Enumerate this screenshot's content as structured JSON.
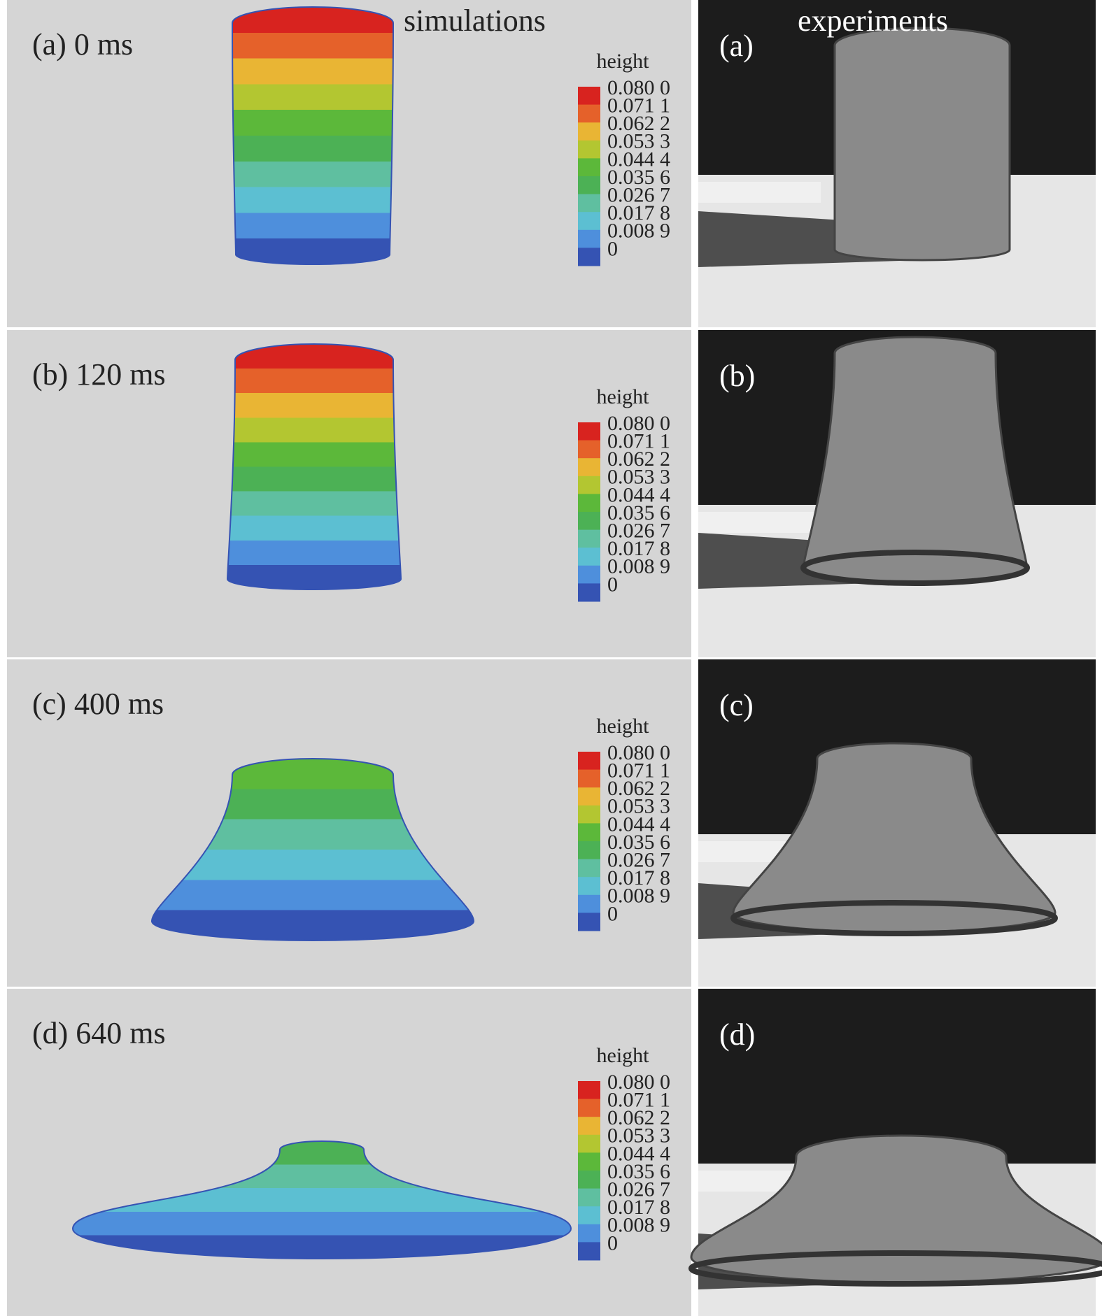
{
  "header": {
    "simulations": "simulations",
    "experiments": "experiments"
  },
  "colorbar": {
    "title": "height",
    "labels": [
      "0.080 0",
      "0.071 1",
      "0.062 2",
      "0.053 3",
      "0.044 4",
      "0.035 6",
      "0.026 7",
      "0.017 8",
      "0.008 9",
      "0"
    ],
    "colors": [
      "#d8231f",
      "#e5612a",
      "#e9b534",
      "#b3c631",
      "#5cb83a",
      "#4cb155",
      "#5fbfa0",
      "#5cbfd2",
      "#4e8fdc",
      "#3553b3"
    ]
  },
  "rows": [
    {
      "simulation_label": "(a) 0 ms",
      "experiment_label": "(a)"
    },
    {
      "simulation_label": "(b) 120 ms",
      "experiment_label": "(b)"
    },
    {
      "simulation_label": "(c) 400 ms",
      "experiment_label": "(c)"
    },
    {
      "simulation_label": "(d) 640 ms",
      "experiment_label": "(d)"
    }
  ]
}
